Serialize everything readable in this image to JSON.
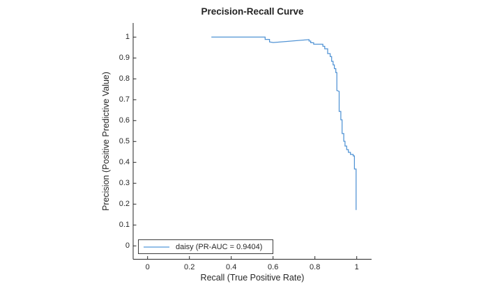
{
  "chart_data": {
    "type": "line",
    "title": "Precision-Recall Curve",
    "xlabel": "Recall (True Positive Rate)",
    "ylabel": "Precision (Positive Predictive Value)",
    "xlim": [
      -0.07,
      1.07
    ],
    "ylim": [
      -0.07,
      1.07
    ],
    "grid": false,
    "x_ticks": [
      0,
      0.2,
      0.4,
      0.6,
      0.8,
      1
    ],
    "x_tick_labels": [
      "0",
      "0.2",
      "0.4",
      "0.6",
      "0.8",
      "1"
    ],
    "y_ticks": [
      0,
      0.1,
      0.2,
      0.3,
      0.4,
      0.5,
      0.6,
      0.7,
      0.8,
      0.9,
      1
    ],
    "y_tick_labels": [
      "0",
      "0.1",
      "0.2",
      "0.3",
      "0.4",
      "0.5",
      "0.6",
      "0.7",
      "0.8",
      "0.9",
      "1"
    ],
    "legend": {
      "position": "inside-bottom-left",
      "border": true
    },
    "colors": {
      "axis": "#262626",
      "text": "#262626",
      "background": "#ffffff"
    },
    "series": [
      {
        "name": "daisy (PR-AUC = 0.9404)",
        "class_label": "daisy",
        "pr_auc": 0.9404,
        "color": "#4f92d4",
        "legend_sample_color": "#93bfe8",
        "points": [
          [
            0.305,
            1.0
          ],
          [
            0.562,
            1.0
          ],
          [
            0.562,
            0.989
          ],
          [
            0.583,
            0.989
          ],
          [
            0.583,
            0.977
          ],
          [
            0.601,
            0.974
          ],
          [
            0.772,
            0.988
          ],
          [
            0.772,
            0.981
          ],
          [
            0.78,
            0.981
          ],
          [
            0.78,
            0.973
          ],
          [
            0.794,
            0.973
          ],
          [
            0.794,
            0.966
          ],
          [
            0.838,
            0.966
          ],
          [
            0.838,
            0.956
          ],
          [
            0.847,
            0.956
          ],
          [
            0.847,
            0.944
          ],
          [
            0.861,
            0.944
          ],
          [
            0.861,
            0.921
          ],
          [
            0.873,
            0.921
          ],
          [
            0.873,
            0.907
          ],
          [
            0.88,
            0.907
          ],
          [
            0.88,
            0.884
          ],
          [
            0.887,
            0.884
          ],
          [
            0.887,
            0.867
          ],
          [
            0.893,
            0.867
          ],
          [
            0.893,
            0.849
          ],
          [
            0.9,
            0.849
          ],
          [
            0.9,
            0.83
          ],
          [
            0.905,
            0.83
          ],
          [
            0.905,
            0.744
          ],
          [
            0.916,
            0.74
          ],
          [
            0.916,
            0.644
          ],
          [
            0.924,
            0.644
          ],
          [
            0.924,
            0.604
          ],
          [
            0.93,
            0.604
          ],
          [
            0.93,
            0.538
          ],
          [
            0.938,
            0.538
          ],
          [
            0.938,
            0.501
          ],
          [
            0.944,
            0.501
          ],
          [
            0.944,
            0.478
          ],
          [
            0.952,
            0.478
          ],
          [
            0.952,
            0.461
          ],
          [
            0.96,
            0.461
          ],
          [
            0.96,
            0.448
          ],
          [
            0.97,
            0.448
          ],
          [
            0.97,
            0.438
          ],
          [
            0.983,
            0.438
          ],
          [
            0.983,
            0.431
          ],
          [
            0.989,
            0.431
          ],
          [
            0.989,
            0.368
          ],
          [
            0.997,
            0.368
          ],
          [
            0.997,
            0.172
          ]
        ]
      }
    ]
  }
}
